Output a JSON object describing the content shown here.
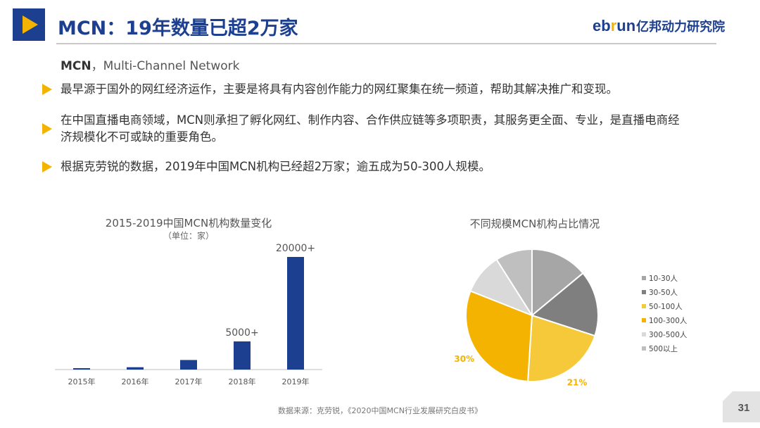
{
  "header": {
    "title": "MCN：19年数量已超2万家",
    "brand_en_1": "eb",
    "brand_en_2": "r",
    "brand_en_3": "un",
    "brand_cn": "亿邦动力研究院"
  },
  "definition": {
    "term": "MCN",
    "full": "，Multi-Channel Network"
  },
  "bullets": [
    "最早源于国外的网红经济运作，主要是将具有内容创作能力的网红聚集在统一频道，帮助其解决推广和变现。",
    "在中国直播电商领域，MCN则承担了孵化网红、制作内容、合作供应链等多项职责，其服务更全面、专业，是直播电商经济规模化不可或缺的重要角色。",
    "根据克劳锐的数据，2019年中国MCN机构已经超2万家；逾五成为50-300人规模。"
  ],
  "bar_chart": {
    "title": "2015-2019中国MCN机构数量变化",
    "unit": "（单位：家）"
  },
  "pie_chart": {
    "title": "不同规模MCN机构占比情况"
  },
  "chart_data": [
    {
      "type": "bar",
      "title": "2015-2019中国MCN机构数量变化",
      "subtitle": "（单位：家）",
      "categories": [
        "2015年",
        "2016年",
        "2017年",
        "2018年",
        "2019年"
      ],
      "values": [
        160,
        420,
        1700,
        5000,
        20000
      ],
      "data_labels": [
        "",
        "",
        "",
        "5000+",
        "20000+"
      ],
      "ylim": [
        0,
        20000
      ],
      "grid": false,
      "color": "#1d3f8f"
    },
    {
      "type": "pie",
      "title": "不同规模MCN机构占比情况",
      "labels": [
        "10-30人",
        "30-50人",
        "50-100人",
        "100-300人",
        "300-500人",
        "500以上"
      ],
      "values": [
        14,
        16,
        21,
        30,
        10,
        9
      ],
      "data_labels": [
        "",
        "",
        "21%",
        "30%",
        "",
        ""
      ],
      "colors": [
        "#a6a6a6",
        "#7f7f7f",
        "#f6c93a",
        "#f3b300",
        "#d9d9d9",
        "#bfbfbf"
      ],
      "label_color": "#f3b300",
      "legend": "right"
    }
  ],
  "footer": {
    "source": "数据来源：克劳锐，《2020中国MCN行业发展研究白皮书》",
    "page_number": "31"
  }
}
